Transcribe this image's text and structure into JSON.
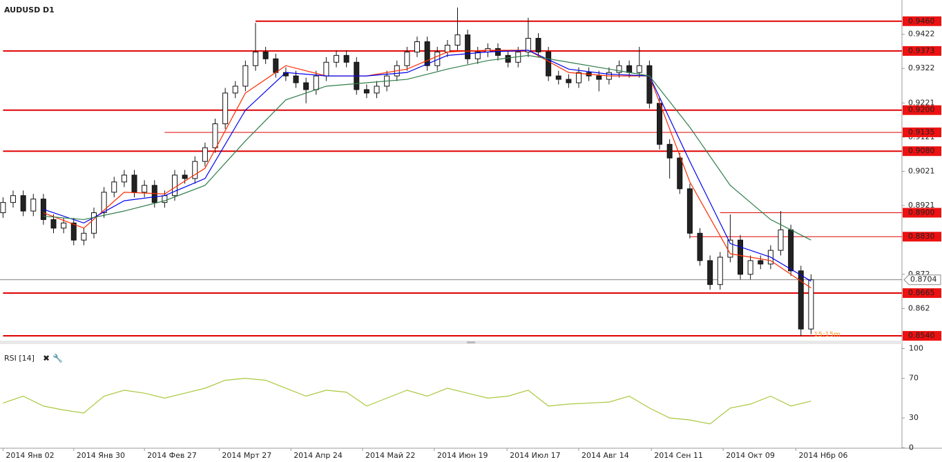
{
  "chart_data": {
    "type": "candlestick",
    "title": "AUDUSD D1",
    "indicator_title": "RSI [14]",
    "timer": "15:15m",
    "open": [
      0.89,
      0.893,
      0.895,
      0.8905,
      0.894,
      0.888,
      0.8855,
      0.887,
      0.882,
      0.884,
      0.89,
      0.896,
      0.899,
      0.901,
      0.896,
      0.898,
      0.893,
      0.895,
      0.901,
      0.9,
      0.905,
      0.909,
      0.916,
      0.925,
      0.927,
      0.933,
      0.937,
      0.935,
      0.931,
      0.93,
      0.928,
      0.926,
      0.93,
      0.934,
      0.936,
      0.934,
      0.926,
      0.925,
      0.927,
      0.93,
      0.933,
      0.937,
      0.94,
      0.933,
      0.937,
      0.939,
      0.942,
      0.935,
      0.937,
      0.938,
      0.936,
      0.934,
      0.937,
      0.941,
      0.937,
      0.93,
      0.929,
      0.928,
      0.931,
      0.93,
      0.929,
      0.931,
      0.933,
      0.931,
      0.933,
      0.922,
      0.91,
      0.906,
      0.897,
      0.884,
      0.876,
      0.869,
      0.877,
      0.882,
      0.872,
      0.876,
      0.875,
      0.879,
      0.885,
      0.873,
      0.856
    ],
    "high": [
      0.8945,
      0.8965,
      0.8965,
      0.8955,
      0.8955,
      0.8895,
      0.8885,
      0.8885,
      0.8855,
      0.8915,
      0.8975,
      0.9005,
      0.9025,
      0.9025,
      0.8995,
      0.8995,
      0.8965,
      0.9025,
      0.9025,
      0.9065,
      0.9105,
      0.9175,
      0.9265,
      0.9285,
      0.9345,
      0.9455,
      0.9385,
      0.9365,
      0.9325,
      0.9315,
      0.9295,
      0.9315,
      0.9355,
      0.9375,
      0.9375,
      0.9355,
      0.9275,
      0.9285,
      0.9315,
      0.9345,
      0.9385,
      0.9415,
      0.9415,
      0.9385,
      0.9405,
      0.95,
      0.9435,
      0.9385,
      0.9395,
      0.9395,
      0.9375,
      0.9385,
      0.947,
      0.9425,
      0.9385,
      0.9315,
      0.9305,
      0.9325,
      0.9325,
      0.9315,
      0.9325,
      0.9345,
      0.9345,
      0.9385,
      0.9345,
      0.9235,
      0.9115,
      0.9075,
      0.8985,
      0.8855,
      0.8775,
      0.8785,
      0.8895,
      0.8835,
      0.8775,
      0.8775,
      0.8805,
      0.8905,
      0.8865,
      0.8745,
      0.872
    ],
    "low": [
      0.8885,
      0.8915,
      0.889,
      0.889,
      0.8865,
      0.884,
      0.884,
      0.8805,
      0.8805,
      0.8825,
      0.8885,
      0.8945,
      0.8975,
      0.8945,
      0.8945,
      0.8915,
      0.8915,
      0.8935,
      0.8985,
      0.8985,
      0.9035,
      0.9075,
      0.9145,
      0.9235,
      0.9255,
      0.9315,
      0.9335,
      0.9295,
      0.9285,
      0.9265,
      0.922,
      0.9245,
      0.9285,
      0.9325,
      0.9325,
      0.9245,
      0.9235,
      0.9235,
      0.9255,
      0.9285,
      0.9315,
      0.9355,
      0.9315,
      0.9315,
      0.9355,
      0.9375,
      0.9335,
      0.9335,
      0.9355,
      0.9345,
      0.9325,
      0.9325,
      0.9355,
      0.9355,
      0.9285,
      0.9275,
      0.9265,
      0.9265,
      0.9285,
      0.9255,
      0.9275,
      0.9295,
      0.9295,
      0.9295,
      0.9205,
      0.9085,
      0.9,
      0.8955,
      0.8825,
      0.8745,
      0.8675,
      0.8675,
      0.8755,
      0.8705,
      0.8705,
      0.8735,
      0.8735,
      0.8775,
      0.8715,
      0.854,
      0.8545
    ],
    "close": [
      0.893,
      0.895,
      0.8905,
      0.894,
      0.888,
      0.8855,
      0.887,
      0.882,
      0.884,
      0.89,
      0.896,
      0.899,
      0.901,
      0.896,
      0.898,
      0.893,
      0.895,
      0.901,
      0.9,
      0.905,
      0.909,
      0.916,
      0.925,
      0.927,
      0.933,
      0.937,
      0.935,
      0.931,
      0.93,
      0.928,
      0.926,
      0.93,
      0.934,
      0.936,
      0.934,
      0.926,
      0.925,
      0.927,
      0.93,
      0.933,
      0.937,
      0.94,
      0.933,
      0.937,
      0.939,
      0.942,
      0.935,
      0.937,
      0.938,
      0.936,
      0.934,
      0.937,
      0.941,
      0.937,
      0.93,
      0.929,
      0.928,
      0.931,
      0.93,
      0.929,
      0.931,
      0.933,
      0.931,
      0.933,
      0.922,
      0.91,
      0.906,
      0.897,
      0.884,
      0.876,
      0.869,
      0.877,
      0.882,
      0.872,
      0.876,
      0.875,
      0.879,
      0.885,
      0.873,
      0.856,
      0.8704
    ],
    "ma_x": [
      4,
      8,
      12,
      16,
      20,
      24,
      28,
      32,
      36,
      40,
      44,
      48,
      52,
      56,
      60,
      64,
      68,
      72,
      76,
      80
    ],
    "moving_averages": [
      {
        "color": "#ff2a00",
        "values": [
          0.89,
          0.8855,
          0.896,
          0.8955,
          0.903,
          0.925,
          0.933,
          0.93,
          0.93,
          0.932,
          0.937,
          0.9375,
          0.9375,
          0.931,
          0.93,
          0.93,
          0.899,
          0.878,
          0.876,
          0.868
        ]
      },
      {
        "color": "#0000ee",
        "values": [
          0.891,
          0.887,
          0.8935,
          0.895,
          0.9,
          0.92,
          0.931,
          0.93,
          0.93,
          0.931,
          0.936,
          0.937,
          0.9375,
          0.932,
          0.9305,
          0.93,
          0.905,
          0.881,
          0.877,
          0.87
        ]
      },
      {
        "color": "#2e7d4a",
        "values": [
          0.889,
          0.888,
          0.8905,
          0.8935,
          0.898,
          0.911,
          0.923,
          0.927,
          0.928,
          0.929,
          0.932,
          0.9345,
          0.936,
          0.934,
          0.932,
          0.93,
          0.915,
          0.898,
          0.888,
          0.882
        ]
      }
    ],
    "levels": [
      {
        "value": 0.946,
        "label": "0.9460",
        "from": 25,
        "style": "bold"
      },
      {
        "value": 0.9373,
        "label": "0.9373",
        "from": 0,
        "style": "bold"
      },
      {
        "value": 0.92,
        "label": "0.9200",
        "from": 0,
        "style": "bold"
      },
      {
        "value": 0.9135,
        "label": "0.9135",
        "from": 16,
        "style": "thin"
      },
      {
        "value": 0.908,
        "label": "0.9080",
        "from": 0,
        "style": "bold"
      },
      {
        "value": 0.89,
        "label": "0.8900",
        "from": 71,
        "style": "thin"
      },
      {
        "value": 0.883,
        "label": "0.8830",
        "from": 68,
        "style": "thin"
      },
      {
        "value": 0.8665,
        "label": "0.8665",
        "from": 0,
        "style": "bold"
      },
      {
        "value": 0.854,
        "label": "0.8540",
        "from": 0,
        "style": "bold"
      }
    ],
    "current_price": {
      "value": 0.8704,
      "label": "0.8704"
    },
    "ylim": [
      0.8526,
      0.9522
    ],
    "yticks": [
      0.9422,
      0.9322,
      0.9221,
      0.9121,
      0.9021,
      0.8921,
      0.872,
      0.862
    ],
    "xlim": [
      -0.3,
      89
    ],
    "xticks": [
      {
        "value": 0,
        "label": "2014 Янв 02"
      },
      {
        "value": 7,
        "label": "2014 Янв 30"
      },
      {
        "value": 14,
        "label": "2014 Фев 27"
      },
      {
        "value": 21.4,
        "label": "2014 Мрт 27"
      },
      {
        "value": 28.5,
        "label": "2014 Апр 24"
      },
      {
        "value": 35.6,
        "label": "2014 Май 22"
      },
      {
        "value": 42.7,
        "label": "2014 Июн 19"
      },
      {
        "value": 49.9,
        "label": "2014 Июл 17"
      },
      {
        "value": 57,
        "label": "2014 Авг 14"
      },
      {
        "value": 64.2,
        "label": "2014 Сен 11"
      },
      {
        "value": 71.3,
        "label": "2014 Окт 09"
      },
      {
        "value": 78.5,
        "label": "2014 Нбр 06"
      }
    ],
    "rsi": {
      "color": "#a8c83c",
      "x": [
        0,
        2,
        4,
        6,
        8,
        10,
        12,
        14,
        16,
        18,
        20,
        22,
        24,
        26,
        28,
        30,
        32,
        34,
        36,
        38,
        40,
        42,
        44,
        46,
        48,
        50,
        52,
        54,
        56,
        58,
        60,
        62,
        64,
        66,
        68,
        70,
        72,
        74,
        76,
        78,
        80
      ],
      "values": [
        45,
        52,
        42,
        38,
        35,
        52,
        58,
        55,
        50,
        55,
        60,
        68,
        70,
        68,
        60,
        52,
        58,
        56,
        42,
        50,
        58,
        52,
        60,
        55,
        50,
        52,
        58,
        42,
        44,
        45,
        46,
        52,
        40,
        30,
        28,
        24,
        40,
        44,
        52,
        42,
        47
      ],
      "ylim": [
        -0.5,
        104.5
      ],
      "yticks": [
        100,
        70,
        30,
        0
      ]
    }
  }
}
